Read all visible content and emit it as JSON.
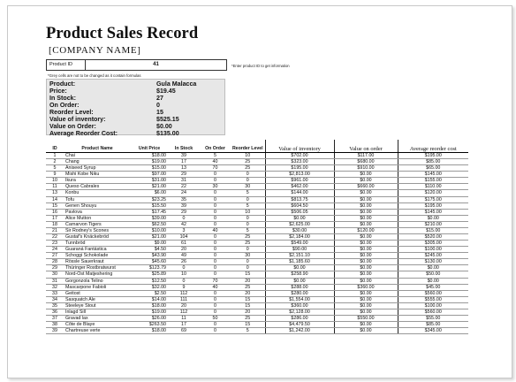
{
  "title": "Product Sales Record",
  "company": "[COMPANY NAME]",
  "product_id": {
    "label": "Product ID",
    "value": "41",
    "note": "*Enter product ID to get information"
  },
  "gray_note": "*Grey cells are not to be changed as it contain formulas",
  "product_info": [
    {
      "label": "Product:",
      "value": "Gula Malacca"
    },
    {
      "label": "Price:",
      "value": "$19.45"
    },
    {
      "label": "In Stock:",
      "value": "27"
    },
    {
      "label": "On Order:",
      "value": "0"
    },
    {
      "label": "Reorder Level:",
      "value": "15"
    },
    {
      "label": "Value of inventory:",
      "value": "$525.15"
    },
    {
      "label": "Value on Order:",
      "value": "$0.00"
    },
    {
      "label": "Average Reorder Cost:",
      "value": "$135.00"
    }
  ],
  "table": {
    "headers": [
      "ID",
      "Product Name",
      "Unit Price",
      "In Stock",
      "On Order",
      "Reorder Level",
      "Value of inventory",
      "Value on order",
      "Average reorder cost"
    ],
    "rows": [
      [
        "1",
        "Chai",
        "$18.00",
        "39",
        "5",
        "10",
        "$702.00",
        "$117.00",
        "$195.00"
      ],
      [
        "2",
        "Chang",
        "$19.00",
        "17",
        "40",
        "25",
        "$323.00",
        "$680.00",
        "$85.00"
      ],
      [
        "5",
        "Aniseed Syrup",
        "$15.00",
        "13",
        "70",
        "25",
        "$195.00",
        "$910.00",
        "$65.00"
      ],
      [
        "9",
        "Mishi Kobe Niku",
        "$97.00",
        "29",
        "0",
        "0",
        "$2,813.00",
        "$0.00",
        "$145.00"
      ],
      [
        "10",
        "Ikura",
        "$31.00",
        "31",
        "0",
        "0",
        "$961.00",
        "$0.00",
        "$155.00"
      ],
      [
        "11",
        "Queso Cabrales",
        "$21.00",
        "22",
        "30",
        "30",
        "$462.00",
        "$660.00",
        "$110.00"
      ],
      [
        "13",
        "Konbu",
        "$6.00",
        "24",
        "0",
        "5",
        "$144.00",
        "$0.00",
        "$120.00"
      ],
      [
        "14",
        "Tofu",
        "$23.25",
        "35",
        "0",
        "0",
        "$813.75",
        "$0.00",
        "$175.00"
      ],
      [
        "15",
        "Genen Shouyu",
        "$15.50",
        "39",
        "0",
        "5",
        "$604.50",
        "$0.00",
        "$195.00"
      ],
      [
        "16",
        "Pavlova",
        "$17.45",
        "29",
        "0",
        "10",
        "$506.05",
        "$0.00",
        "$145.00"
      ],
      [
        "17",
        "Alice Mutton",
        "$39.00",
        "0",
        "0",
        "0",
        "$0.00",
        "$0.00",
        "$0.00"
      ],
      [
        "18",
        "Carnarvon Tigers",
        "$62.50",
        "42",
        "0",
        "0",
        "$2,625.00",
        "$0.00",
        "$210.00"
      ],
      [
        "21",
        "Sir Rodney's Scones",
        "$10.00",
        "3",
        "40",
        "5",
        "$30.00",
        "$120.00",
        "$15.00"
      ],
      [
        "22",
        "Gustaf's Knäckebröd",
        "$21.00",
        "104",
        "0",
        "25",
        "$2,184.00",
        "$0.00",
        "$520.00"
      ],
      [
        "23",
        "Tunnbröd",
        "$9.00",
        "61",
        "0",
        "25",
        "$549.00",
        "$0.00",
        "$305.00"
      ],
      [
        "24",
        "Guaraná Fantástica",
        "$4.50",
        "20",
        "0",
        "0",
        "$90.00",
        "$0.00",
        "$100.00"
      ],
      [
        "27",
        "Schoggi Schokolade",
        "$43.90",
        "49",
        "0",
        "30",
        "$2,151.10",
        "$0.00",
        "$245.00"
      ],
      [
        "28",
        "Rössle Sauerkraut",
        "$45.60",
        "26",
        "0",
        "0",
        "$1,185.60",
        "$0.00",
        "$130.00"
      ],
      [
        "29",
        "Thüringer Rostbratwurst",
        "$123.79",
        "0",
        "0",
        "0",
        "$0.00",
        "$0.00",
        "$0.00"
      ],
      [
        "30",
        "Nord-Ost Matjeshering",
        "$25.89",
        "10",
        "0",
        "15",
        "$258.90",
        "$0.00",
        "$50.00"
      ],
      [
        "31",
        "Gorgonzola Telino",
        "$12.50",
        "0",
        "70",
        "20",
        "$0.00",
        "$0.00",
        "$0.00"
      ],
      [
        "32",
        "Mascarpone Fabioli",
        "$32.00",
        "9",
        "40",
        "25",
        "$288.00",
        "$360.00",
        "$45.00"
      ],
      [
        "33",
        "Geitost",
        "$2.50",
        "112",
        "0",
        "20",
        "$280.00",
        "$0.00",
        "$560.00"
      ],
      [
        "34",
        "Sasquatch Ale",
        "$14.00",
        "111",
        "0",
        "15",
        "$1,554.00",
        "$0.00",
        "$555.00"
      ],
      [
        "35",
        "Steeleye Stout",
        "$18.00",
        "20",
        "0",
        "15",
        "$360.00",
        "$0.00",
        "$100.00"
      ],
      [
        "36",
        "Inlagd Sill",
        "$19.00",
        "112",
        "0",
        "20",
        "$2,128.00",
        "$0.00",
        "$560.00"
      ],
      [
        "37",
        "Gravad lax",
        "$26.00",
        "11",
        "50",
        "25",
        "$286.00",
        "$550.00",
        "$55.00"
      ],
      [
        "38",
        "Côte de Blaye",
        "$263.50",
        "17",
        "0",
        "15",
        "$4,479.50",
        "$0.00",
        "$85.00"
      ],
      [
        "39",
        "Chartreuse verte",
        "$18.00",
        "69",
        "0",
        "5",
        "$1,242.00",
        "$0.00",
        "$345.00"
      ]
    ]
  }
}
